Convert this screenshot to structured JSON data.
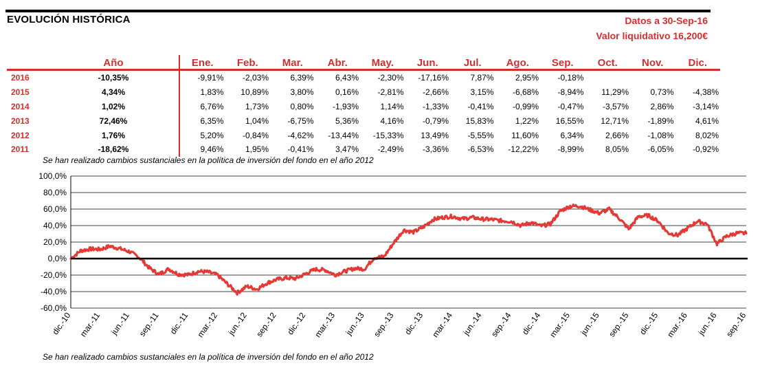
{
  "header": {
    "title": "EVOLUCIÓN HISTÓRICA",
    "info_line1": "Datos a 30-Sep-16",
    "info_line2": "Valor liquidativo 16,200€"
  },
  "table": {
    "year_header": "Año",
    "month_headers": [
      "Ene.",
      "Feb.",
      "Mar.",
      "Abr.",
      "May.",
      "Jun.",
      "Jul.",
      "Ago.",
      "Sep.",
      "Oct.",
      "Nov.",
      "Dic."
    ],
    "rows": [
      {
        "year": "2016",
        "annual": "-10,35%",
        "months": [
          "-9,91%",
          "-2,03%",
          "6,39%",
          "6,43%",
          "-2,30%",
          "-17,16%",
          "7,87%",
          "2,95%",
          "-0,18%",
          "",
          "",
          ""
        ]
      },
      {
        "year": "2015",
        "annual": "4,34%",
        "months": [
          "1,83%",
          "10,89%",
          "3,80%",
          "0,16%",
          "-2,81%",
          "-2,66%",
          "3,15%",
          "-6,68%",
          "-8,94%",
          "11,29%",
          "0,73%",
          "-4,38%"
        ]
      },
      {
        "year": "2014",
        "annual": "1,02%",
        "months": [
          "6,76%",
          "1,73%",
          "0,80%",
          "-1,93%",
          "1,14%",
          "-1,33%",
          "-0,41%",
          "-0,99%",
          "-0,47%",
          "-3,57%",
          "2,86%",
          "-3,14%"
        ]
      },
      {
        "year": "2013",
        "annual": "72,46%",
        "months": [
          "6,35%",
          "1,04%",
          "-6,75%",
          "5,36%",
          "4,16%",
          "-0,79%",
          "15,83%",
          "1,22%",
          "16,55%",
          "12,71%",
          "-1,89%",
          "4,61%"
        ]
      },
      {
        "year": "2012",
        "annual": "1,76%",
        "months": [
          "5,20%",
          "-0,84%",
          "-4,62%",
          "-13,44%",
          "-15,33%",
          "13,49%",
          "-5,55%",
          "11,60%",
          "6,34%",
          "2,66%",
          "-1,08%",
          "8,02%"
        ]
      },
      {
        "year": "2011",
        "annual": "-18,62%",
        "months": [
          "9,46%",
          "1,95%",
          "-0,41%",
          "3,47%",
          "-2,49%",
          "-3,36%",
          "-6,53%",
          "-12,22%",
          "-8,99%",
          "8,05%",
          "-6,05%",
          "-0,92%"
        ]
      }
    ]
  },
  "notes": {
    "top": "Se han realizado cambios sustanciales en la política de inversión del fondo en el año 2012",
    "bottom": "Se han realizado cambios sustanciales en la política de inversión del fondo en el año 2012"
  },
  "chart_data": {
    "type": "line",
    "title": "",
    "xlabel": "",
    "ylabel": "",
    "ylim": [
      -60,
      100
    ],
    "y_ticks": [
      -60,
      -40,
      -20,
      0,
      20,
      40,
      60,
      80,
      100
    ],
    "y_tick_labels": [
      "-60,0%",
      "-40,0%",
      "-20,0%",
      "0,0%",
      "20,0%",
      "40,0%",
      "60,0%",
      "80,0%",
      "100,0%"
    ],
    "x_tick_labels": [
      "dic.-10",
      "mar.-11",
      "jun.-11",
      "sep.-11",
      "dic.-11",
      "mar.-12",
      "jun.-12",
      "sep.-12",
      "dic.-12",
      "mar.-13",
      "jun.-13",
      "sep.-13",
      "dic.-13",
      "mar.-14",
      "jun.-14",
      "sep.-14",
      "dic.-14",
      "mar.-15",
      "jun.-15",
      "sep.-15",
      "dic.-15",
      "mar.-16",
      "jun.-16",
      "sep.-16"
    ],
    "grid": true,
    "line_color": "#e53935",
    "series": [
      {
        "name": "",
        "x": [
          "dic.-10",
          "ene.-11",
          "feb.-11",
          "mar.-11",
          "abr.-11",
          "may.-11",
          "jun.-11",
          "jul.-11",
          "ago.-11",
          "sep.-11",
          "oct.-11",
          "nov.-11",
          "dic.-11",
          "ene.-12",
          "feb.-12",
          "mar.-12",
          "abr.-12",
          "may.-12",
          "jun.-12",
          "jul.-12",
          "ago.-12",
          "sep.-12",
          "oct.-12",
          "nov.-12",
          "dic.-12",
          "ene.-13",
          "feb.-13",
          "mar.-13",
          "abr.-13",
          "may.-13",
          "jun.-13",
          "jul.-13",
          "ago.-13",
          "sep.-13",
          "oct.-13",
          "nov.-13",
          "dic.-13",
          "ene.-14",
          "feb.-14",
          "mar.-14",
          "abr.-14",
          "may.-14",
          "jun.-14",
          "jul.-14",
          "ago.-14",
          "sep.-14",
          "oct.-14",
          "nov.-14",
          "dic.-14",
          "ene.-15",
          "feb.-15",
          "mar.-15",
          "abr.-15",
          "may.-15",
          "jun.-15",
          "jul.-15",
          "ago.-15",
          "sep.-15",
          "oct.-15",
          "nov.-15",
          "dic.-15",
          "ene.-16",
          "feb.-16",
          "mar.-16",
          "abr.-16",
          "may.-16",
          "jun.-16",
          "jul.-16",
          "ago.-16",
          "sep.-16"
        ],
        "values": [
          0,
          9.5,
          11.6,
          11.2,
          15.0,
          12.1,
          8.4,
          1.3,
          -11.1,
          -19.1,
          -12.6,
          -18.9,
          -19.7,
          -15.5,
          -16.2,
          -20.1,
          -30.8,
          -41.4,
          -33.5,
          -37.2,
          -29.9,
          -25.4,
          -23.4,
          -24.2,
          -18.2,
          -13.0,
          -13.9,
          -19.7,
          -15.4,
          -11.9,
          -12.6,
          1.2,
          2.4,
          19.3,
          34.5,
          32.0,
          38.1,
          47.4,
          49.9,
          51.1,
          48.1,
          49.8,
          47.9,
          47.3,
          45.8,
          45.1,
          39.9,
          43.9,
          39.4,
          42.0,
          57.5,
          63.5,
          63.8,
          59.2,
          55.0,
          59.8,
          49.1,
          35.8,
          51.1,
          52.2,
          45.5,
          31.1,
          28.4,
          36.6,
          45.4,
          42.1,
          17.8,
          27.1,
          30.8,
          30.6
        ]
      }
    ]
  }
}
